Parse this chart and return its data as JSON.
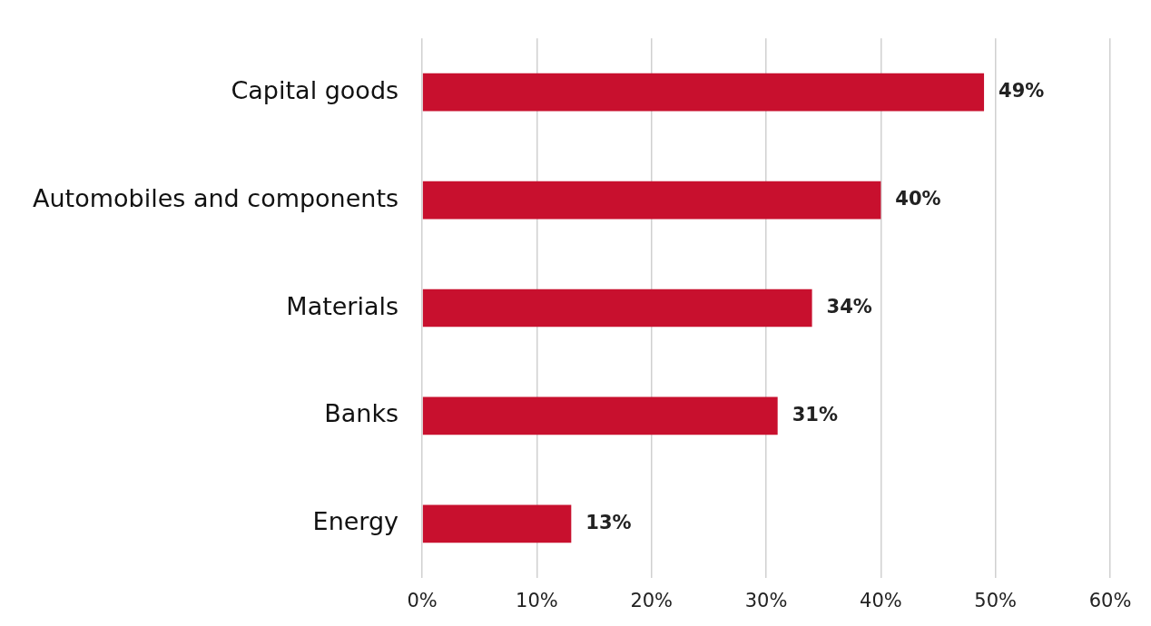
{
  "chart_data": {
    "type": "bar",
    "orientation": "horizontal",
    "categories": [
      "Capital goods",
      "Automobiles and components",
      "Materials",
      "Banks",
      "Energy"
    ],
    "values": [
      49,
      40,
      34,
      31,
      13
    ],
    "value_labels": [
      "49%",
      "40%",
      "34%",
      "31%",
      "13%"
    ],
    "color": "#c8102e",
    "xlim": [
      0,
      60
    ],
    "xticks": [
      {
        "value": 0,
        "label": "0%"
      },
      {
        "value": 10,
        "label": "10%"
      },
      {
        "value": 20,
        "label": "20%"
      },
      {
        "value": 30,
        "label": "30%"
      },
      {
        "value": 40,
        "label": "40%"
      },
      {
        "value": 50,
        "label": "50%"
      },
      {
        "value": 60,
        "label": "60%"
      }
    ],
    "grid": "x",
    "legend": false
  }
}
